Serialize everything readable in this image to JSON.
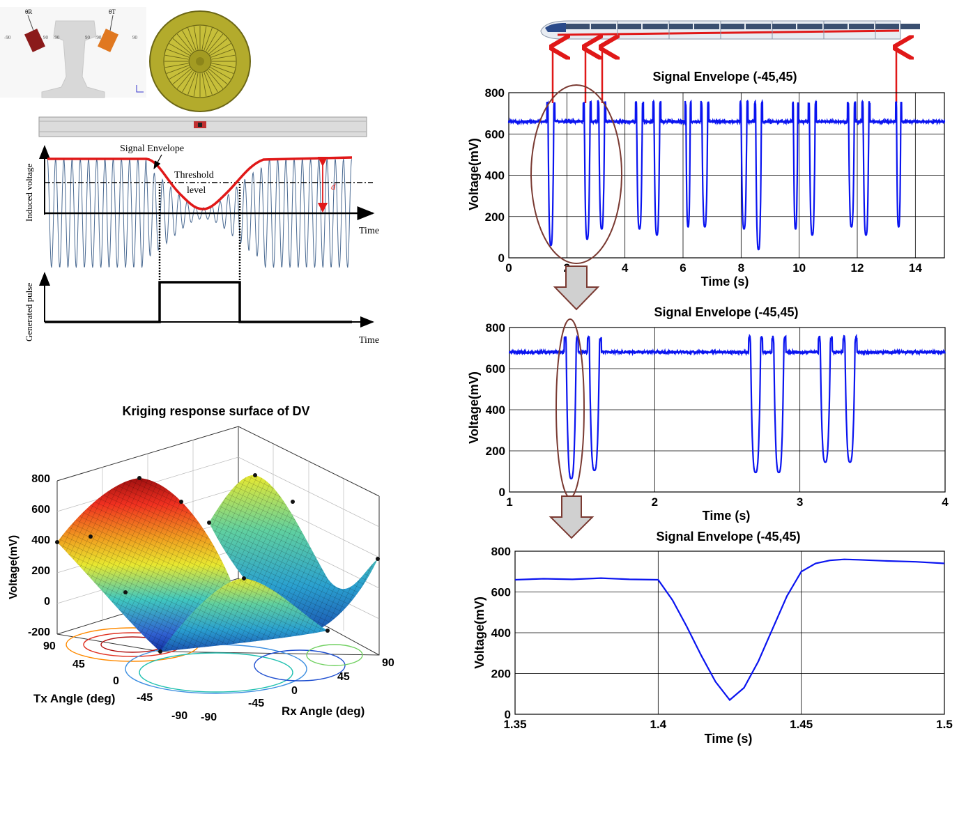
{
  "colors": {
    "signal_blue": "#0a14f0",
    "envelope_red": "#e01818",
    "arrow_red": "#e01818",
    "ellipse_brown": "#7a3a32",
    "down_arrow_gray": "#d0d0d0",
    "wheel_olive": "#b3ab2c",
    "tx_sensor": "#8b1a1a",
    "rx_sensor": "#e07820",
    "waveform_steel": "#4a6a92"
  },
  "schematic": {
    "sensor_tx_label": "θR",
    "sensor_rx_label": "θT",
    "angle_ticks": [
      "-90",
      "90",
      "-90",
      "90",
      "-90",
      "90"
    ],
    "signal_envelope_label": "Signal Envelope",
    "threshold_label_1": "Threshold",
    "threshold_label_2": "level",
    "d_label": "d",
    "y_label_top": "Induced voltage",
    "y_label_bottom": "Generated pulse",
    "x_label_top": "Time",
    "x_label_bottom": "Time"
  },
  "surface_plot": {
    "title": "Kriging response surface of DV",
    "zlabel": "Voltage(mV)",
    "z_ticks": [
      "800",
      "600",
      "400",
      "200",
      "0",
      "-200"
    ],
    "x_axis_label": "Tx Angle (deg)",
    "x_ticks": [
      "90",
      "45",
      "0",
      "-45",
      "-90"
    ],
    "y_axis_label": "Rx Angle (deg)",
    "y_ticks": [
      "-90",
      "-45",
      "0",
      "45",
      "90"
    ],
    "icon": "kriging-surface-3d"
  },
  "chart_data": [
    {
      "type": "line",
      "title": "Signal Envelope (-45,45)",
      "xlabel": "Time (s)",
      "ylabel": "Voltage(mV)",
      "xlim": [
        0,
        15
      ],
      "ylim": [
        0,
        800
      ],
      "x_ticks": [
        "0",
        "2",
        "4",
        "6",
        "8",
        "10",
        "12",
        "14"
      ],
      "y_ticks": [
        "0",
        "200",
        "400",
        "600",
        "800"
      ],
      "grid": true,
      "baseline_mV": 660,
      "dips": [
        {
          "start": 1.35,
          "end": 1.55,
          "min": 60
        },
        {
          "start": 2.6,
          "end": 2.8,
          "min": 90
        },
        {
          "start": 3.1,
          "end": 3.3,
          "min": 140
        },
        {
          "start": 4.4,
          "end": 4.6,
          "min": 140
        },
        {
          "start": 5.0,
          "end": 5.2,
          "min": 110
        },
        {
          "start": 6.1,
          "end": 6.25,
          "min": 150
        },
        {
          "start": 6.65,
          "end": 6.85,
          "min": 150
        },
        {
          "start": 8.0,
          "end": 8.2,
          "min": 140
        },
        {
          "start": 8.5,
          "end": 8.7,
          "min": 40
        },
        {
          "start": 9.8,
          "end": 9.95,
          "min": 140
        },
        {
          "start": 10.35,
          "end": 10.55,
          "min": 110
        },
        {
          "start": 11.7,
          "end": 11.9,
          "min": 150
        },
        {
          "start": 12.2,
          "end": 12.4,
          "min": 110
        },
        {
          "start": 13.35,
          "end": 13.5,
          "min": 150
        }
      ]
    },
    {
      "type": "line",
      "title": "Signal Envelope (-45,45)",
      "xlabel": "Time (s)",
      "ylabel": "Voltage(mV)",
      "xlim": [
        1,
        4
      ],
      "ylim": [
        0,
        800
      ],
      "x_ticks": [
        "1",
        "2",
        "3",
        "4"
      ],
      "y_ticks": [
        "0",
        "200",
        "400",
        "600",
        "800"
      ],
      "grid": true,
      "baseline_mV": 680,
      "dips": [
        {
          "start": 1.39,
          "end": 1.46,
          "min": 65
        },
        {
          "start": 1.55,
          "end": 1.62,
          "min": 105
        },
        {
          "start": 2.66,
          "end": 2.73,
          "min": 95
        },
        {
          "start": 2.82,
          "end": 2.89,
          "min": 95
        },
        {
          "start": 3.14,
          "end": 3.21,
          "min": 145
        },
        {
          "start": 3.31,
          "end": 3.38,
          "min": 145
        }
      ]
    },
    {
      "type": "line",
      "title": "Signal Envelope (-45,45)",
      "xlabel": "Time (s)",
      "ylabel": "Voltage(mV)",
      "xlim": [
        1.35,
        1.5
      ],
      "ylim": [
        0,
        800
      ],
      "x_ticks": [
        "1.35",
        "1.4",
        "1.45",
        "1.5"
      ],
      "y_ticks": [
        "0",
        "200",
        "400",
        "600",
        "800"
      ],
      "grid": true,
      "x": [
        1.35,
        1.36,
        1.37,
        1.38,
        1.39,
        1.4,
        1.405,
        1.41,
        1.415,
        1.42,
        1.425,
        1.43,
        1.435,
        1.44,
        1.445,
        1.45,
        1.455,
        1.46,
        1.465,
        1.47,
        1.48,
        1.49,
        1.5
      ],
      "y": [
        660,
        665,
        662,
        668,
        662,
        660,
        560,
        430,
        290,
        160,
        70,
        130,
        260,
        420,
        580,
        700,
        740,
        755,
        760,
        758,
        752,
        748,
        740
      ]
    }
  ]
}
